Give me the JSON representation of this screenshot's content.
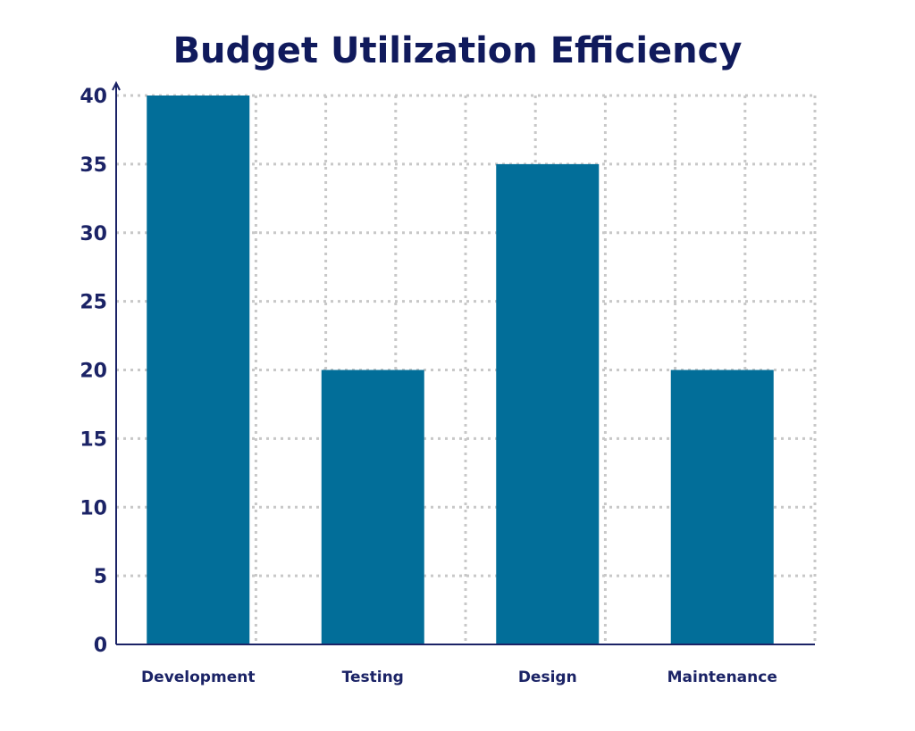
{
  "colors": {
    "title": "#101a5c",
    "axis": "#1b2366",
    "bar": "#026e99",
    "grid": "#c8c8c8",
    "background": "#ffffff"
  },
  "chart_data": {
    "type": "bar",
    "title": "Budget Utilization Efficiency",
    "xlabel": "",
    "ylabel": "",
    "categories": [
      "Development",
      "Testing",
      "Design",
      "Maintenance"
    ],
    "values": [
      40,
      20,
      35,
      20
    ],
    "ylim": [
      0,
      40
    ],
    "yticks": [
      "0",
      "5",
      "10",
      "15",
      "20",
      "25",
      "30",
      "35",
      "40"
    ],
    "grid": true,
    "grid_style": "dotted",
    "legend": "none"
  }
}
